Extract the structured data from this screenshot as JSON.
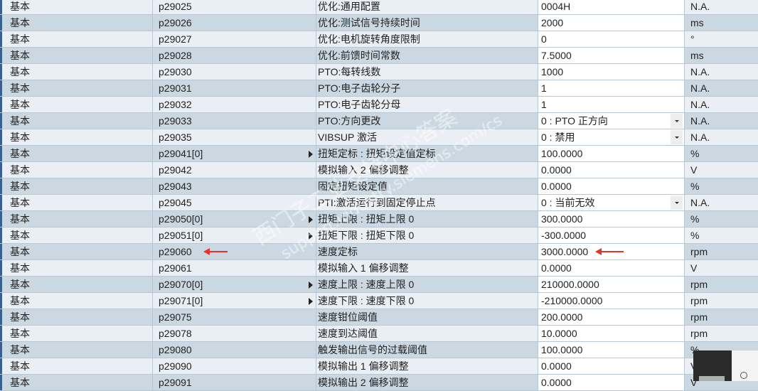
{
  "rows": [
    {
      "group": "基本",
      "param": "p29025",
      "desc": "优化:通用配置",
      "value": "0004H",
      "unit": "N.A."
    },
    {
      "group": "基本",
      "param": "p29026",
      "desc": "优化:测试信号持续时间",
      "value": "2000",
      "unit": "ms"
    },
    {
      "group": "基本",
      "param": "p29027",
      "desc": "优化:电机旋转角度限制",
      "value": "0",
      "unit": "°"
    },
    {
      "group": "基本",
      "param": "p29028",
      "desc": "优化:前馈时间常数",
      "value": "7.5000",
      "unit": "ms"
    },
    {
      "group": "基本",
      "param": "p29030",
      "desc": "PTO:每转线数",
      "value": "1000",
      "unit": "N.A."
    },
    {
      "group": "基本",
      "param": "p29031",
      "desc": "PTO:电子齿轮分子",
      "value": "1",
      "unit": "N.A."
    },
    {
      "group": "基本",
      "param": "p29032",
      "desc": "PTO:电子齿轮分母",
      "value": "1",
      "unit": "N.A."
    },
    {
      "group": "基本",
      "param": "p29033",
      "desc": "PTO:方向更改",
      "value": "0 : PTO 正方向",
      "unit": "N.A.",
      "dropdown": true
    },
    {
      "group": "基本",
      "param": "p29035",
      "desc": "VIBSUP 激活",
      "value": "0 : 禁用",
      "unit": "N.A.",
      "dropdown": true
    },
    {
      "group": "基本",
      "param": "p29041[0]",
      "desc": "扭矩定标 : 扭矩设定值定标",
      "value": "100.0000",
      "unit": "%",
      "expandable": true
    },
    {
      "group": "基本",
      "param": "p29042",
      "desc": "模拟输入 2 偏移调整",
      "value": "0.0000",
      "unit": "V"
    },
    {
      "group": "基本",
      "param": "p29043",
      "desc": "固定扭矩设定值",
      "value": "0.0000",
      "unit": "%"
    },
    {
      "group": "基本",
      "param": "p29045",
      "desc": "PTI:激活运行到固定停止点",
      "value": "0 : 当前无效",
      "unit": "N.A.",
      "dropdown": true
    },
    {
      "group": "基本",
      "param": "p29050[0]",
      "desc": "扭矩上限 : 扭矩上限 0",
      "value": "300.0000",
      "unit": "%",
      "expandable": true
    },
    {
      "group": "基本",
      "param": "p29051[0]",
      "desc": "扭矩下限 : 扭矩下限 0",
      "value": "-300.0000",
      "unit": "%",
      "expandable": true
    },
    {
      "group": "基本",
      "param": "p29060",
      "desc": "速度定标",
      "value": "3000.0000",
      "unit": "rpm",
      "highlighted": true
    },
    {
      "group": "基本",
      "param": "p29061",
      "desc": "模拟输入 1 偏移调整",
      "value": "0.0000",
      "unit": "V"
    },
    {
      "group": "基本",
      "param": "p29070[0]",
      "desc": "速度上限 : 速度上限 0",
      "value": "210000.0000",
      "unit": "rpm",
      "expandable": true
    },
    {
      "group": "基本",
      "param": "p29071[0]",
      "desc": "速度下限 : 速度下限 0",
      "value": "-210000.0000",
      "unit": "rpm",
      "expandable": true
    },
    {
      "group": "基本",
      "param": "p29075",
      "desc": "速度钳位阈值",
      "value": "200.0000",
      "unit": "rpm"
    },
    {
      "group": "基本",
      "param": "p29078",
      "desc": "速度到达阈值",
      "value": "10.0000",
      "unit": "rpm"
    },
    {
      "group": "基本",
      "param": "p29080",
      "desc": "触发输出信号的过载阈值",
      "value": "100.0000",
      "unit": "%"
    },
    {
      "group": "基本",
      "param": "p29090",
      "desc": "模拟输出 1 偏移调整",
      "value": "0.0000",
      "unit": "V"
    },
    {
      "group": "基本",
      "param": "p29091",
      "desc": "模拟输出 2 偏移调整",
      "value": "0.0000",
      "unit": "V"
    }
  ],
  "watermark": {
    "line1": "西门子工业支持中心答案",
    "line2": "support.industry.siemens.com/cs"
  },
  "colors": {
    "row_odd": "#e9eff5",
    "row_even": "#cbd8e1",
    "annotation_arrow": "#e8322a"
  },
  "icons": {
    "expand": "triangle-right-icon",
    "dropdown": "chevron-down-icon",
    "search": "search-icon",
    "annotation": "red-arrow-left-icon"
  }
}
